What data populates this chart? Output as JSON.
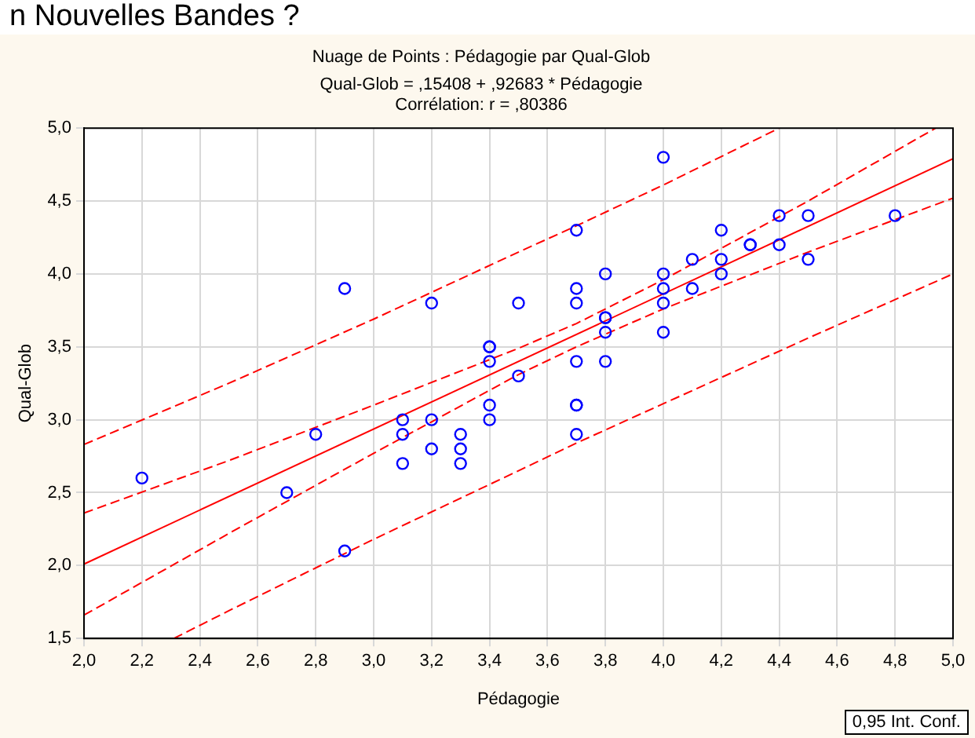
{
  "chart_data": {
    "type": "scatter",
    "title": "Nuage de Points : Pédagogie par Qual-Glob",
    "subtitle": "Qual-Glob = ,15408 + ,92683 * Pédagogie",
    "xlabel": "Pédagogie",
    "ylabel": "Qual-Glob",
    "annotations": [
      "n Nouvelles Bandes ?",
      "Corrélation: r = ,80386",
      "0,95 Int. Conf."
    ],
    "xlim": [
      2,
      5
    ],
    "ylim": [
      1.5,
      5
    ],
    "xticks": [
      {
        "value": 2,
        "label": "2,0"
      },
      {
        "value": 2.2,
        "label": "2,2"
      },
      {
        "value": 2.4,
        "label": "2,4"
      },
      {
        "value": 2.6,
        "label": "2,6"
      },
      {
        "value": 2.8,
        "label": "2,8"
      },
      {
        "value": 3,
        "label": "3,0"
      },
      {
        "value": 3.2,
        "label": "3,2"
      },
      {
        "value": 3.4,
        "label": "3,4"
      },
      {
        "value": 3.6,
        "label": "3,6"
      },
      {
        "value": 3.8,
        "label": "3,8"
      },
      {
        "value": 4,
        "label": "4,0"
      },
      {
        "value": 4.2,
        "label": "4,2"
      },
      {
        "value": 4.4,
        "label": "4,4"
      },
      {
        "value": 4.6,
        "label": "4,6"
      },
      {
        "value": 4.8,
        "label": "4,8"
      },
      {
        "value": 5,
        "label": "5,0"
      }
    ],
    "yticks": [
      {
        "value": 1.5,
        "label": "1,5"
      },
      {
        "value": 2,
        "label": "2,0"
      },
      {
        "value": 2.5,
        "label": "2,5"
      },
      {
        "value": 3,
        "label": "3,0"
      },
      {
        "value": 3.5,
        "label": "3,5"
      },
      {
        "value": 4,
        "label": "4,0"
      },
      {
        "value": 4.5,
        "label": "4,5"
      },
      {
        "value": 5,
        "label": "5,0"
      }
    ],
    "grid": true,
    "marker": "circle",
    "series": [
      {
        "color": "#0000ff",
        "x": [
          2.2,
          2.9,
          2.8,
          2.7,
          2.9,
          3.1,
          3.1,
          3.1,
          3.2,
          3.2,
          3.2,
          3.3,
          3.3,
          3.3,
          3.4,
          3.4,
          3.4,
          3.4,
          3.4,
          3.5,
          3.5,
          4.0,
          3.7,
          3.7,
          3.7,
          3.7,
          3.7,
          3.7,
          3.7,
          3.8,
          3.8,
          3.8,
          3.8,
          3.8,
          4.0,
          4.0,
          4.0,
          4.0,
          4.1,
          4.1,
          4.2,
          4.2,
          4.2,
          4.3,
          4.3,
          4.4,
          4.4,
          4.5,
          4.5,
          4.8
        ],
        "values": [
          2.6,
          3.9,
          2.9,
          2.5,
          2.1,
          3.0,
          2.9,
          2.7,
          3.8,
          3.0,
          2.8,
          2.9,
          2.8,
          2.7,
          3.5,
          3.5,
          3.4,
          3.1,
          3.0,
          3.8,
          3.3,
          4.8,
          4.3,
          3.9,
          3.8,
          3.4,
          3.1,
          3.1,
          2.9,
          4.0,
          3.7,
          3.7,
          3.6,
          3.4,
          4.0,
          3.9,
          3.8,
          3.6,
          4.1,
          3.9,
          4.3,
          4.1,
          4.0,
          4.2,
          4.2,
          4.4,
          4.2,
          4.4,
          4.1,
          4.4
        ]
      },
      {
        "type": "line",
        "color": "#ff0000",
        "marker": "none",
        "line_style": "solid",
        "x": [
          2,
          5
        ],
        "values": [
          2.01,
          4.79
        ]
      },
      {
        "type": "line",
        "color": "#ff0000",
        "marker": "none",
        "line_style": "dashed",
        "x": [
          2,
          2.5,
          3,
          3.5,
          3.7,
          4,
          4.5,
          4.94
        ],
        "values": [
          2.36,
          2.72,
          3.1,
          3.49,
          3.66,
          3.96,
          4.5,
          5.0
        ]
      },
      {
        "type": "line",
        "color": "#ff0000",
        "marker": "none",
        "line_style": "dashed",
        "x": [
          2,
          2.5,
          3,
          3.5,
          3.7,
          4,
          4.5,
          5
        ],
        "values": [
          1.66,
          2.22,
          2.77,
          3.31,
          3.5,
          3.76,
          4.15,
          4.52
        ]
      },
      {
        "type": "line",
        "color": "#ff0000",
        "marker": "none",
        "line_style": "dashed",
        "x": [
          2,
          2.5,
          3,
          3.5,
          3.7,
          4,
          4.4
        ],
        "values": [
          2.83,
          3.25,
          3.69,
          4.15,
          4.33,
          4.61,
          5.0
        ]
      },
      {
        "type": "line",
        "color": "#ff0000",
        "marker": "none",
        "line_style": "dashed",
        "x": [
          2.31,
          2.5,
          3,
          3.5,
          3.7,
          4,
          4.5,
          5
        ],
        "values": [
          1.5,
          1.69,
          2.18,
          2.65,
          2.84,
          3.11,
          3.56,
          4.0
        ]
      }
    ]
  }
}
